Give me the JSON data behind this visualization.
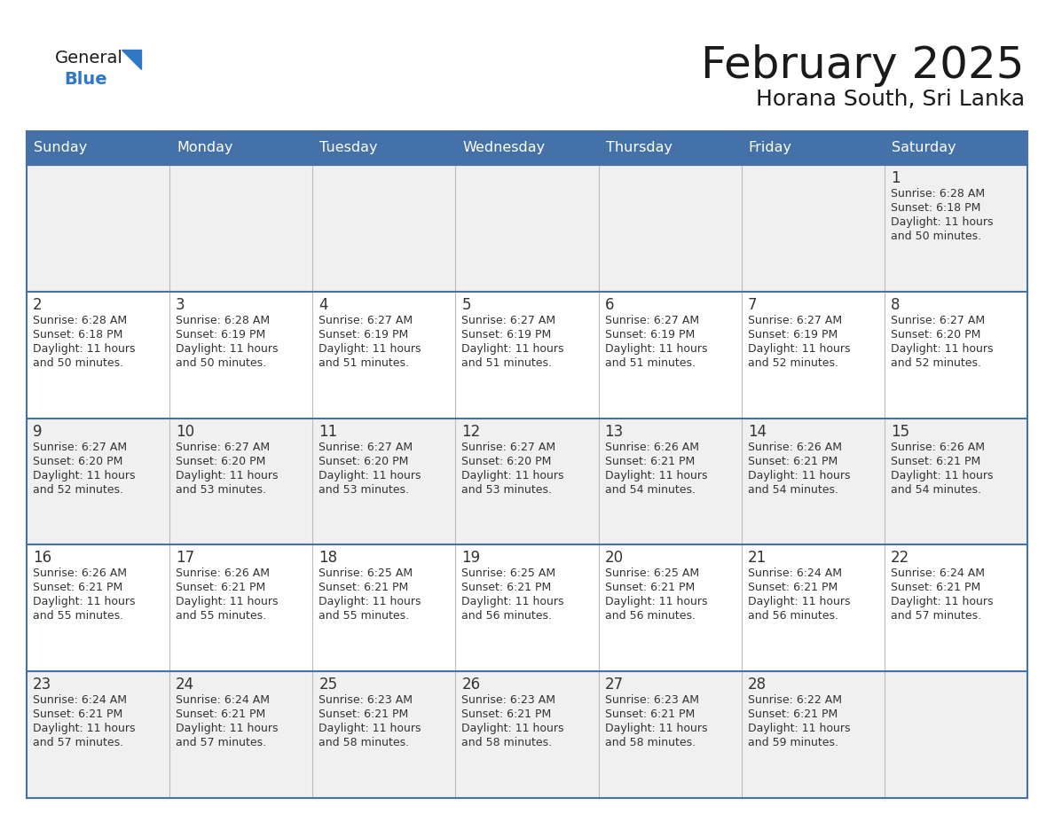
{
  "title": "February 2025",
  "subtitle": "Horana South, Sri Lanka",
  "days_of_week": [
    "Sunday",
    "Monday",
    "Tuesday",
    "Wednesday",
    "Thursday",
    "Friday",
    "Saturday"
  ],
  "header_bg": "#4472a8",
  "header_text": "#ffffff",
  "cell_bg_gray": "#f0f0f0",
  "cell_bg_white": "#ffffff",
  "border_color": "#4472a8",
  "day_num_color": "#333333",
  "text_color": "#333333",
  "title_color": "#1a1a1a",
  "subtitle_color": "#1a1a1a",
  "logo_general_color": "#1a1a1a",
  "logo_blue_color": "#2e78c5",
  "calendar": [
    [
      {
        "day": null,
        "sunrise": null,
        "sunset": null,
        "daylight": null
      },
      {
        "day": null,
        "sunrise": null,
        "sunset": null,
        "daylight": null
      },
      {
        "day": null,
        "sunrise": null,
        "sunset": null,
        "daylight": null
      },
      {
        "day": null,
        "sunrise": null,
        "sunset": null,
        "daylight": null
      },
      {
        "day": null,
        "sunrise": null,
        "sunset": null,
        "daylight": null
      },
      {
        "day": null,
        "sunrise": null,
        "sunset": null,
        "daylight": null
      },
      {
        "day": 1,
        "sunrise": "6:28 AM",
        "sunset": "6:18 PM",
        "daylight": "11 hours\nand 50 minutes."
      }
    ],
    [
      {
        "day": 2,
        "sunrise": "6:28 AM",
        "sunset": "6:18 PM",
        "daylight": "11 hours\nand 50 minutes."
      },
      {
        "day": 3,
        "sunrise": "6:28 AM",
        "sunset": "6:19 PM",
        "daylight": "11 hours\nand 50 minutes."
      },
      {
        "day": 4,
        "sunrise": "6:27 AM",
        "sunset": "6:19 PM",
        "daylight": "11 hours\nand 51 minutes."
      },
      {
        "day": 5,
        "sunrise": "6:27 AM",
        "sunset": "6:19 PM",
        "daylight": "11 hours\nand 51 minutes."
      },
      {
        "day": 6,
        "sunrise": "6:27 AM",
        "sunset": "6:19 PM",
        "daylight": "11 hours\nand 51 minutes."
      },
      {
        "day": 7,
        "sunrise": "6:27 AM",
        "sunset": "6:19 PM",
        "daylight": "11 hours\nand 52 minutes."
      },
      {
        "day": 8,
        "sunrise": "6:27 AM",
        "sunset": "6:20 PM",
        "daylight": "11 hours\nand 52 minutes."
      }
    ],
    [
      {
        "day": 9,
        "sunrise": "6:27 AM",
        "sunset": "6:20 PM",
        "daylight": "11 hours\nand 52 minutes."
      },
      {
        "day": 10,
        "sunrise": "6:27 AM",
        "sunset": "6:20 PM",
        "daylight": "11 hours\nand 53 minutes."
      },
      {
        "day": 11,
        "sunrise": "6:27 AM",
        "sunset": "6:20 PM",
        "daylight": "11 hours\nand 53 minutes."
      },
      {
        "day": 12,
        "sunrise": "6:27 AM",
        "sunset": "6:20 PM",
        "daylight": "11 hours\nand 53 minutes."
      },
      {
        "day": 13,
        "sunrise": "6:26 AM",
        "sunset": "6:21 PM",
        "daylight": "11 hours\nand 54 minutes."
      },
      {
        "day": 14,
        "sunrise": "6:26 AM",
        "sunset": "6:21 PM",
        "daylight": "11 hours\nand 54 minutes."
      },
      {
        "day": 15,
        "sunrise": "6:26 AM",
        "sunset": "6:21 PM",
        "daylight": "11 hours\nand 54 minutes."
      }
    ],
    [
      {
        "day": 16,
        "sunrise": "6:26 AM",
        "sunset": "6:21 PM",
        "daylight": "11 hours\nand 55 minutes."
      },
      {
        "day": 17,
        "sunrise": "6:26 AM",
        "sunset": "6:21 PM",
        "daylight": "11 hours\nand 55 minutes."
      },
      {
        "day": 18,
        "sunrise": "6:25 AM",
        "sunset": "6:21 PM",
        "daylight": "11 hours\nand 55 minutes."
      },
      {
        "day": 19,
        "sunrise": "6:25 AM",
        "sunset": "6:21 PM",
        "daylight": "11 hours\nand 56 minutes."
      },
      {
        "day": 20,
        "sunrise": "6:25 AM",
        "sunset": "6:21 PM",
        "daylight": "11 hours\nand 56 minutes."
      },
      {
        "day": 21,
        "sunrise": "6:24 AM",
        "sunset": "6:21 PM",
        "daylight": "11 hours\nand 56 minutes."
      },
      {
        "day": 22,
        "sunrise": "6:24 AM",
        "sunset": "6:21 PM",
        "daylight": "11 hours\nand 57 minutes."
      }
    ],
    [
      {
        "day": 23,
        "sunrise": "6:24 AM",
        "sunset": "6:21 PM",
        "daylight": "11 hours\nand 57 minutes."
      },
      {
        "day": 24,
        "sunrise": "6:24 AM",
        "sunset": "6:21 PM",
        "daylight": "11 hours\nand 57 minutes."
      },
      {
        "day": 25,
        "sunrise": "6:23 AM",
        "sunset": "6:21 PM",
        "daylight": "11 hours\nand 58 minutes."
      },
      {
        "day": 26,
        "sunrise": "6:23 AM",
        "sunset": "6:21 PM",
        "daylight": "11 hours\nand 58 minutes."
      },
      {
        "day": 27,
        "sunrise": "6:23 AM",
        "sunset": "6:21 PM",
        "daylight": "11 hours\nand 58 minutes."
      },
      {
        "day": 28,
        "sunrise": "6:22 AM",
        "sunset": "6:21 PM",
        "daylight": "11 hours\nand 59 minutes."
      },
      {
        "day": null,
        "sunrise": null,
        "sunset": null,
        "daylight": null
      }
    ]
  ]
}
